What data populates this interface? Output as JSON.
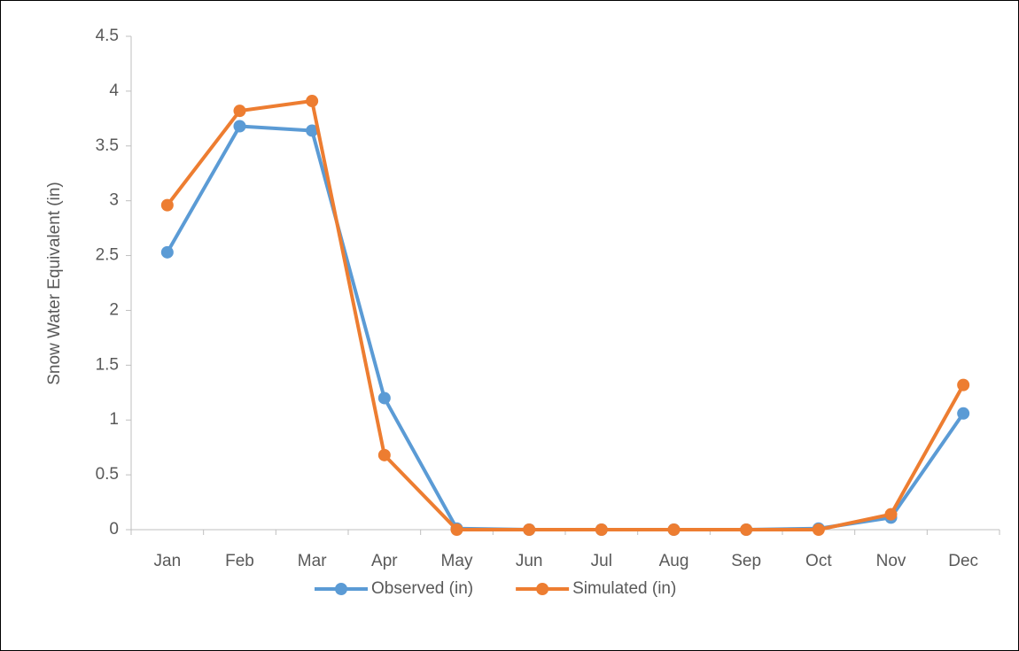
{
  "chart_data": {
    "type": "line",
    "y_label": "Snow Water Equivalent (in)",
    "categories": [
      "Jan",
      "Feb",
      "Mar",
      "Apr",
      "May",
      "Jun",
      "Jul",
      "Aug",
      "Sep",
      "Oct",
      "Nov",
      "Dec"
    ],
    "series": [
      {
        "name": "Observed (in)",
        "color": "#5b9bd5",
        "values": [
          2.53,
          3.68,
          3.64,
          1.2,
          0.01,
          0,
          0,
          0,
          0,
          0.01,
          0.11,
          1.06
        ]
      },
      {
        "name": "Simulated (in)",
        "color": "#ed7d31",
        "values": [
          2.96,
          3.82,
          3.91,
          0.68,
          0,
          0,
          0,
          0,
          0,
          0,
          0.14,
          1.32
        ]
      }
    ],
    "ylim": [
      0,
      4.5
    ],
    "yticks": [
      0,
      0.5,
      1,
      1.5,
      2,
      2.5,
      3,
      3.5,
      4,
      4.5
    ],
    "legend": "bottom",
    "grid": false
  }
}
